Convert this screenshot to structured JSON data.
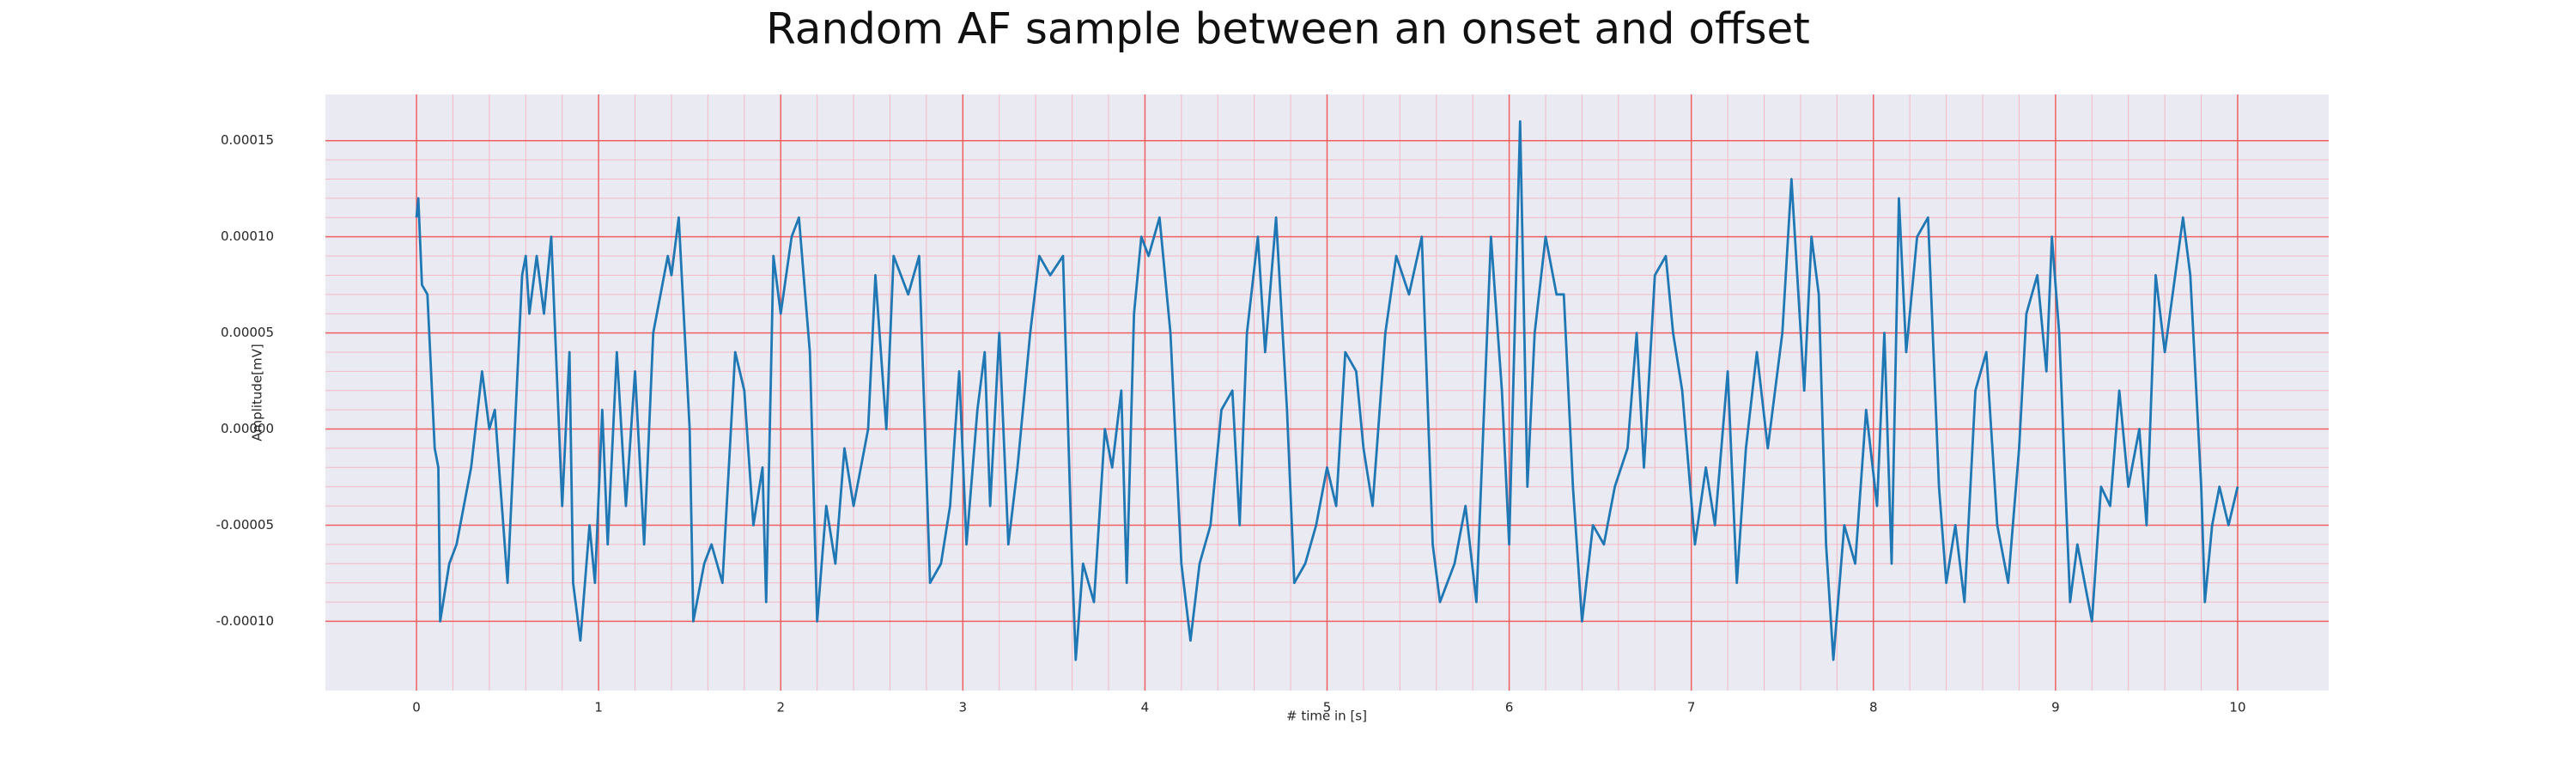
{
  "chart_data": {
    "type": "line",
    "title": "Random AF sample between an onset and offset",
    "xlabel": "# time in [s]",
    "ylabel": "Amplitude[mV]",
    "x": [
      0,
      0.01,
      0.03,
      0.06,
      0.1,
      0.12,
      0.13,
      0.18,
      0.22,
      0.3,
      0.36,
      0.4,
      0.43,
      0.5,
      0.58,
      0.6,
      0.62,
      0.66,
      0.7,
      0.74,
      0.8,
      0.84,
      0.86,
      0.9,
      0.95,
      0.98,
      1.02,
      1.05,
      1.1,
      1.15,
      1.2,
      1.25,
      1.3,
      1.38,
      1.4,
      1.44,
      1.5,
      1.52,
      1.58,
      1.62,
      1.68,
      1.75,
      1.8,
      1.85,
      1.9,
      1.92,
      1.96,
      2.0,
      2.06,
      2.1,
      2.16,
      2.2,
      2.25,
      2.3,
      2.35,
      2.4,
      2.48,
      2.52,
      2.58,
      2.62,
      2.7,
      2.76,
      2.82,
      2.88,
      2.93,
      2.98,
      3.02,
      3.08,
      3.12,
      3.15,
      3.2,
      3.25,
      3.3,
      3.37,
      3.42,
      3.48,
      3.55,
      3.6,
      3.62,
      3.66,
      3.72,
      3.78,
      3.82,
      3.87,
      3.9,
      3.94,
      3.98,
      4.02,
      4.08,
      4.14,
      4.2,
      4.25,
      4.3,
      4.36,
      4.42,
      4.48,
      4.52,
      4.56,
      4.62,
      4.66,
      4.72,
      4.78,
      4.82,
      4.88,
      4.94,
      5.0,
      5.05,
      5.1,
      5.16,
      5.2,
      5.25,
      5.32,
      5.38,
      5.45,
      5.52,
      5.58,
      5.62,
      5.7,
      5.76,
      5.82,
      5.9,
      5.96,
      6.0,
      6.06,
      6.1,
      6.14,
      6.2,
      6.26,
      6.3,
      6.35,
      6.4,
      6.46,
      6.52,
      6.58,
      6.65,
      6.7,
      6.74,
      6.8,
      6.86,
      6.9,
      6.95,
      7.02,
      7.08,
      7.13,
      7.2,
      7.25,
      7.3,
      7.36,
      7.42,
      7.5,
      7.55,
      7.62,
      7.66,
      7.7,
      7.74,
      7.78,
      7.84,
      7.9,
      7.96,
      8.02,
      8.06,
      8.1,
      8.14,
      8.18,
      8.24,
      8.3,
      8.36,
      8.4,
      8.45,
      8.5,
      8.56,
      8.62,
      8.68,
      8.74,
      8.8,
      8.84,
      8.9,
      8.95,
      8.98,
      9.02,
      9.08,
      9.12,
      9.2,
      9.25,
      9.3,
      9.35,
      9.4,
      9.46,
      9.5,
      9.55,
      9.6,
      9.7,
      9.74,
      9.8,
      9.82,
      9.86,
      9.9,
      9.95,
      10.0
    ],
    "values": [
      0.00011,
      0.00012,
      7.5e-05,
      7e-05,
      -1e-05,
      -2e-05,
      -0.0001,
      -7e-05,
      -6e-05,
      -2e-05,
      3e-05,
      0,
      1e-05,
      -8e-05,
      8e-05,
      9e-05,
      6e-05,
      9e-05,
      6e-05,
      0.0001,
      -4e-05,
      4e-05,
      -8e-05,
      -0.00011,
      -5e-05,
      -8e-05,
      1e-05,
      -6e-05,
      4e-05,
      -4e-05,
      3e-05,
      -6e-05,
      5e-05,
      9e-05,
      8e-05,
      0.00011,
      0,
      -0.0001,
      -7e-05,
      -6e-05,
      -8e-05,
      4e-05,
      2e-05,
      -5e-05,
      -2e-05,
      -9e-05,
      9e-05,
      6e-05,
      0.0001,
      0.00011,
      4e-05,
      -0.0001,
      -4e-05,
      -7e-05,
      -1e-05,
      -4e-05,
      0,
      8e-05,
      0,
      9e-05,
      7e-05,
      9e-05,
      -8e-05,
      -7e-05,
      -4e-05,
      3e-05,
      -6e-05,
      1e-05,
      4e-05,
      -4e-05,
      5e-05,
      -6e-05,
      -2e-05,
      5e-05,
      9e-05,
      8e-05,
      9e-05,
      -7e-05,
      -0.00012,
      -7e-05,
      -9e-05,
      0,
      -2e-05,
      2e-05,
      -8e-05,
      6e-05,
      0.0001,
      9e-05,
      0.00011,
      5e-05,
      -7e-05,
      -0.00011,
      -7e-05,
      -5e-05,
      1e-05,
      2e-05,
      -5e-05,
      5e-05,
      0.0001,
      4e-05,
      0.00011,
      1e-05,
      -8e-05,
      -7e-05,
      -5e-05,
      -2e-05,
      -4e-05,
      4e-05,
      3e-05,
      -1e-05,
      -4e-05,
      5e-05,
      9e-05,
      7e-05,
      0.0001,
      -6e-05,
      -9e-05,
      -7e-05,
      -4e-05,
      -9e-05,
      0.0001,
      2e-05,
      -6e-05,
      0.00016,
      -3e-05,
      5e-05,
      0.0001,
      7e-05,
      7e-05,
      -3e-05,
      -0.0001,
      -5e-05,
      -6e-05,
      -3e-05,
      -1e-05,
      5e-05,
      -2e-05,
      8e-05,
      9e-05,
      5e-05,
      2e-05,
      -6e-05,
      -2e-05,
      -5e-05,
      3e-05,
      -8e-05,
      -1e-05,
      4e-05,
      -1e-05,
      5e-05,
      0.00013,
      2e-05,
      0.0001,
      7e-05,
      -6e-05,
      -0.00012,
      -5e-05,
      -7e-05,
      1e-05,
      -4e-05,
      5e-05,
      -7e-05,
      0.00012,
      4e-05,
      0.0001,
      0.00011,
      -3e-05,
      -8e-05,
      -5e-05,
      -9e-05,
      2e-05,
      4e-05,
      -5e-05,
      -8e-05,
      -1e-05,
      6e-05,
      8e-05,
      3e-05,
      0.0001,
      5e-05,
      -9e-05,
      -6e-05,
      -0.0001,
      -3e-05,
      -4e-05,
      2e-05,
      -3e-05,
      0,
      -5e-05,
      8e-05,
      4e-05,
      0.00011,
      8e-05,
      -3e-05,
      -9e-05,
      -5e-05,
      -3e-05,
      -5e-05,
      -3e-05
    ],
    "color": "#1f77b4",
    "xlim": [
      -0.5,
      10.5
    ],
    "ylim": [
      -0.000136,
      0.000174
    ],
    "xticks": [
      0,
      1,
      2,
      3,
      4,
      5,
      6,
      7,
      8,
      9,
      10
    ],
    "yticks": [
      {
        "value": 0.00015,
        "label": "0.00015"
      },
      {
        "value": 0.0001,
        "label": "0.00010"
      },
      {
        "value": 5e-05,
        "label": "0.00005"
      },
      {
        "value": 0,
        "label": "0.00000"
      },
      {
        "value": -5e-05,
        "label": "-0.00005"
      },
      {
        "value": -0.0001,
        "label": "-0.00010"
      }
    ],
    "grid": true,
    "minor_grid": true
  }
}
